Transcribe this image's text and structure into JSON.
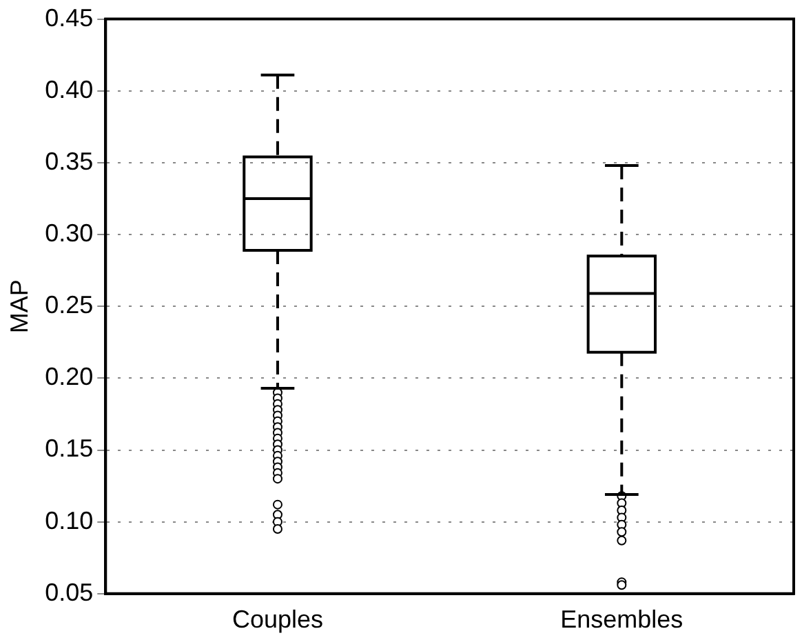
{
  "chart_data": {
    "type": "box",
    "ylabel": "MAP",
    "categories": [
      "Couples",
      "Ensembles"
    ],
    "boxes": [
      {
        "low": 0.193,
        "q1": 0.289,
        "median": 0.325,
        "q3": 0.354,
        "high": 0.411,
        "outliers": [
          0.19,
          0.186,
          0.182,
          0.178,
          0.174,
          0.17,
          0.166,
          0.162,
          0.158,
          0.154,
          0.15,
          0.146,
          0.142,
          0.138,
          0.134,
          0.13,
          0.112,
          0.105,
          0.1,
          0.095
        ]
      },
      {
        "low": 0.119,
        "q1": 0.218,
        "median": 0.259,
        "q3": 0.285,
        "high": 0.348,
        "outliers": [
          0.118,
          0.113,
          0.108,
          0.103,
          0.098,
          0.093,
          0.087,
          0.058,
          0.056
        ]
      }
    ],
    "color": "#000000",
    "ylim": [
      0.05,
      0.45
    ],
    "yticks": [
      0.05,
      {
        "value": 0.1,
        "label": "0.10"
      },
      0.15,
      {
        "value": 0.2,
        "label": "0.20"
      },
      0.25,
      {
        "value": 0.3,
        "label": "0.30"
      },
      0.35,
      {
        "value": 0.4,
        "label": "0.40"
      },
      0.45
    ],
    "grid": "y"
  }
}
